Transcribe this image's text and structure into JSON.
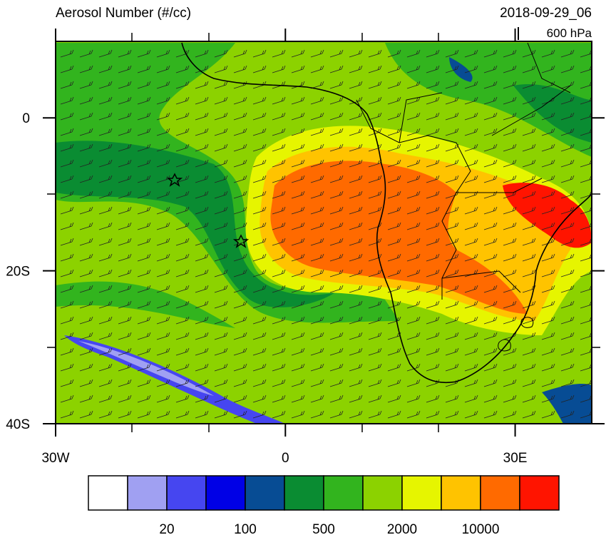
{
  "map": {
    "title": "Aerosol Number (#/cc)",
    "valid_time": "2018-09-29_06",
    "level": "600 hPa",
    "lon_ticks": [
      {
        "value": -30,
        "label": "30W"
      },
      0,
      {
        "value": 30,
        "label": "30E"
      }
    ],
    "lat_ticks": [
      0,
      {
        "value": -20,
        "label": "20S"
      },
      {
        "value": -40,
        "label": "40S"
      }
    ],
    "lonlim": [
      -30,
      40
    ],
    "latlim": [
      -40,
      10
    ],
    "colorbar": {
      "colors": [
        "#ffffff",
        "#a0a0f2",
        "#4646f0",
        "#0000e6",
        "#074c94",
        "#0a8c32",
        "#32b41e",
        "#8cd200",
        "#e6f500",
        "#ffc300",
        "#ff6a00",
        "#ff1400"
      ],
      "labels": [
        20,
        100,
        500,
        2000,
        10000
      ]
    }
  }
}
